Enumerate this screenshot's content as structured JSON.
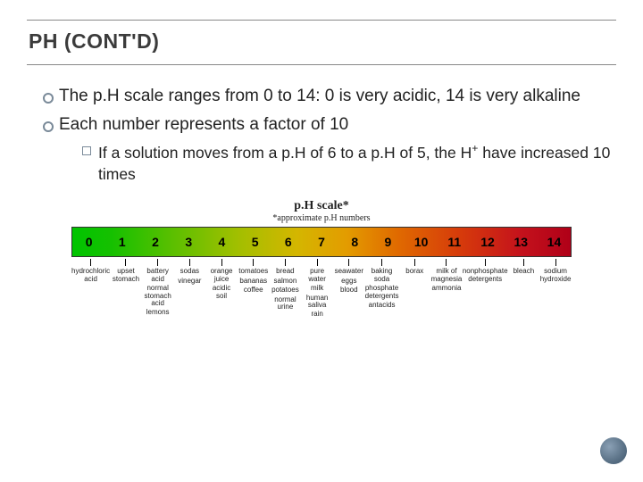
{
  "title": "PH (CONT'D)",
  "bullets": {
    "b1": "The p.H scale ranges from 0 to 14: 0 is very acidic, 14 is very alkaline",
    "b2": "Each number represents a factor of 10",
    "s1_pre": "If a solution moves from a p.H of 6 to a p.H of 5, the H",
    "s1_sup": "+",
    "s1_post": " have increased 10 times"
  },
  "chart": {
    "title": "p.H scale*",
    "subtitle": "*approximate p.H numbers",
    "gradient_css": "linear-gradient(90deg,#00c400 0%,#16c000 8%,#5abf00 20%,#a1bf00 33%,#d4b600 45%,#e39c00 55%,#e06b00 65%,#d63a0b 78%,#c4121c 90%,#b00018 100%)",
    "values": [
      "0",
      "1",
      "2",
      "3",
      "4",
      "5",
      "6",
      "7",
      "8",
      "9",
      "10",
      "11",
      "12",
      "13",
      "14"
    ],
    "labels": [
      [
        "hydrochloric\nacid"
      ],
      [
        "upset\nstomach"
      ],
      [
        "battery\nacid",
        "normal\nstomach\nacid",
        "lemons"
      ],
      [
        "sodas",
        "vinegar"
      ],
      [
        "orange\njuice",
        "acidic\nsoil"
      ],
      [
        "tomatoes",
        "bananas",
        "coffee"
      ],
      [
        "bread",
        "salmon",
        "potatoes",
        "normal\nurine"
      ],
      [
        "pure\nwater",
        "milk",
        "human\nsaliva",
        "rain"
      ],
      [
        "seawater",
        "eggs",
        "blood"
      ],
      [
        "baking\nsoda",
        "phosphate\ndetergents",
        "antacids"
      ],
      [
        "borax"
      ],
      [
        "milk of\nmagnesia",
        "ammonia"
      ],
      [
        "nonphosphate\ndetergents"
      ],
      [
        "bleach"
      ],
      [
        "sodium\nhydroxide"
      ]
    ]
  }
}
